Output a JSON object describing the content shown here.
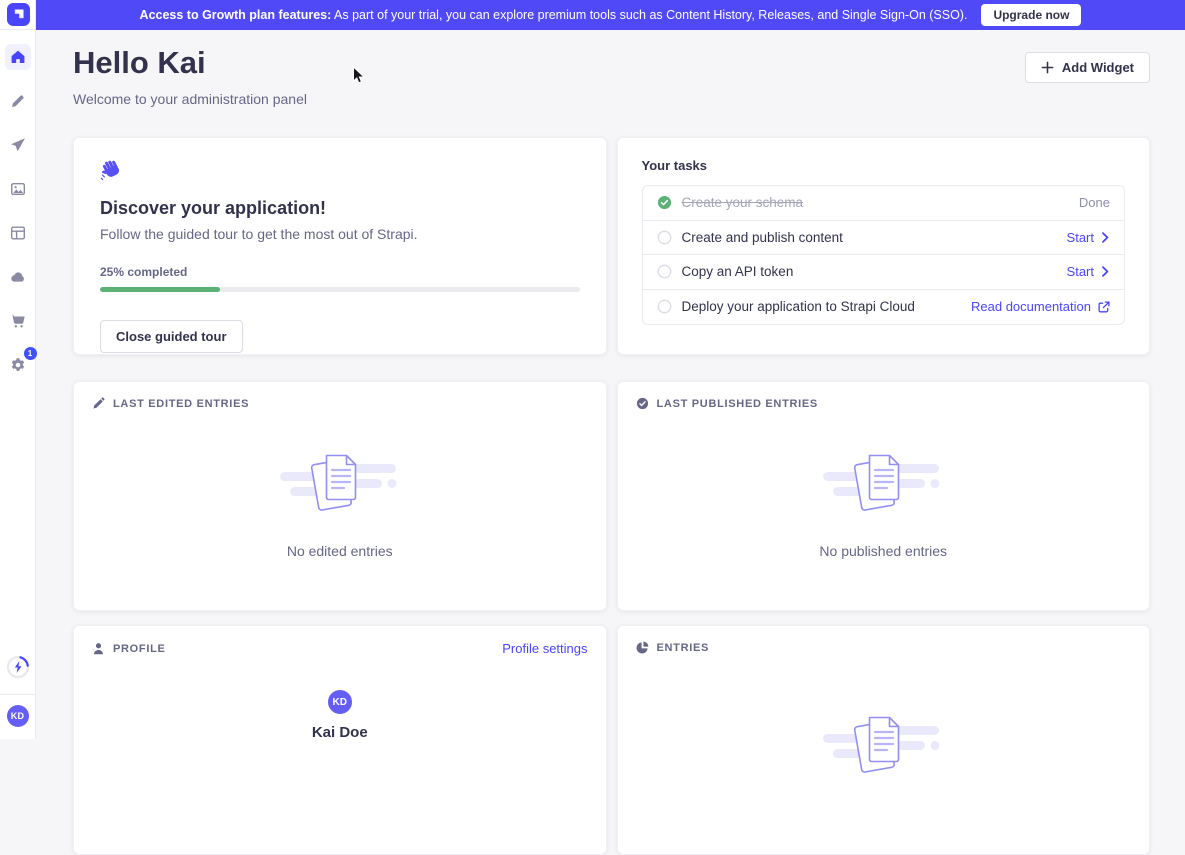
{
  "banner": {
    "text_bold": "Access to Growth plan features:",
    "text_rest": " As part of your trial, you can explore premium tools such as Content History, Releases, and Single Sign-On (SSO).",
    "button": "Upgrade now"
  },
  "sidebar": {
    "items": [
      "home",
      "content-manager",
      "releases",
      "media-library",
      "content-type-builder",
      "deploy",
      "marketplace",
      "settings"
    ],
    "active_item": "home",
    "settings_badge": "1",
    "avatar_initials": "KD"
  },
  "header": {
    "title": "Hello Kai",
    "subtitle": "Welcome to your administration panel",
    "add_widget": "Add Widget"
  },
  "discover": {
    "title": "Discover your application!",
    "subtitle": "Follow the guided tour to get the most out of Strapi.",
    "progress_label": "25% completed",
    "progress_percent": 25,
    "close_button": "Close guided tour"
  },
  "tasks": {
    "title": "Your tasks",
    "items": [
      {
        "label": "Create your schema",
        "status": "done",
        "action": "Done"
      },
      {
        "label": "Create and publish content",
        "status": "todo",
        "action": "Start"
      },
      {
        "label": "Copy an API token",
        "status": "todo",
        "action": "Start"
      },
      {
        "label": "Deploy your application to Strapi Cloud",
        "status": "todo",
        "action": "Read documentation"
      }
    ]
  },
  "widgets": {
    "last_edited": {
      "label": "LAST EDITED ENTRIES",
      "empty": "No edited entries"
    },
    "last_published": {
      "label": "LAST PUBLISHED ENTRIES",
      "empty": "No published entries"
    },
    "profile": {
      "label": "PROFILE",
      "settings_link": "Profile settings",
      "initials": "KD",
      "name": "Kai Doe"
    },
    "entries": {
      "label": "ENTRIES"
    }
  },
  "colors": {
    "accent": "#4945ff",
    "banner": "#4f49f8",
    "success": "#5cb176",
    "page_background": "#f6f6f9",
    "text_dark": "#32324d",
    "text_muted": "#666687"
  }
}
